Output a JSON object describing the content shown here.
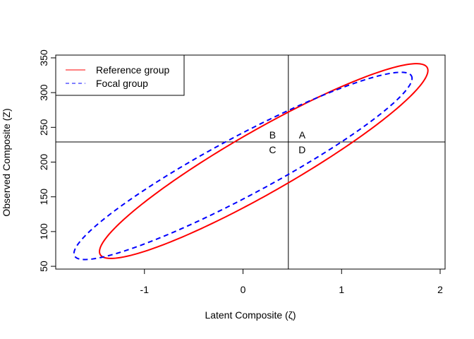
{
  "chart_data": {
    "type": "line",
    "title": "",
    "xlabel": "Latent Composite (ζ)",
    "ylabel": "Observed Composite (Z)",
    "xlim": [
      -1.9,
      2.05
    ],
    "ylim": [
      46,
      354
    ],
    "x_ticks": [
      -1,
      0,
      1,
      2
    ],
    "x_tick_labels": [
      "-1",
      "0",
      "1",
      "2"
    ],
    "y_ticks": [
      50,
      100,
      150,
      200,
      250,
      300,
      350
    ],
    "y_tick_labels": [
      "50",
      "100",
      "150",
      "200",
      "250",
      "300",
      "350"
    ],
    "grid": false,
    "legend_position": "top-left",
    "reference_lines": {
      "vertical_x": 0.46,
      "horizontal_y": 229
    },
    "quadrant_labels": [
      {
        "text": "B",
        "x": 0.3,
        "y": 239
      },
      {
        "text": "A",
        "x": 0.6,
        "y": 239
      },
      {
        "text": "C",
        "x": 0.3,
        "y": 218
      },
      {
        "text": "D",
        "x": 0.6,
        "y": 218
      }
    ],
    "series": [
      {
        "name": "Reference group",
        "color": "#ff0000",
        "style": "solid",
        "ellipse": {
          "cx": 0.21,
          "cy": 201.5,
          "sx": 0.68,
          "sy": 57.2,
          "r": 0.93,
          "k": 2.45
        }
      },
      {
        "name": "Focal group",
        "color": "#0000ff",
        "style": "dashed",
        "ellipse": {
          "cx": 0.0,
          "cy": 194.5,
          "sx": 0.7,
          "sy": 55.0,
          "r": 0.935,
          "k": 2.45
        }
      }
    ]
  }
}
